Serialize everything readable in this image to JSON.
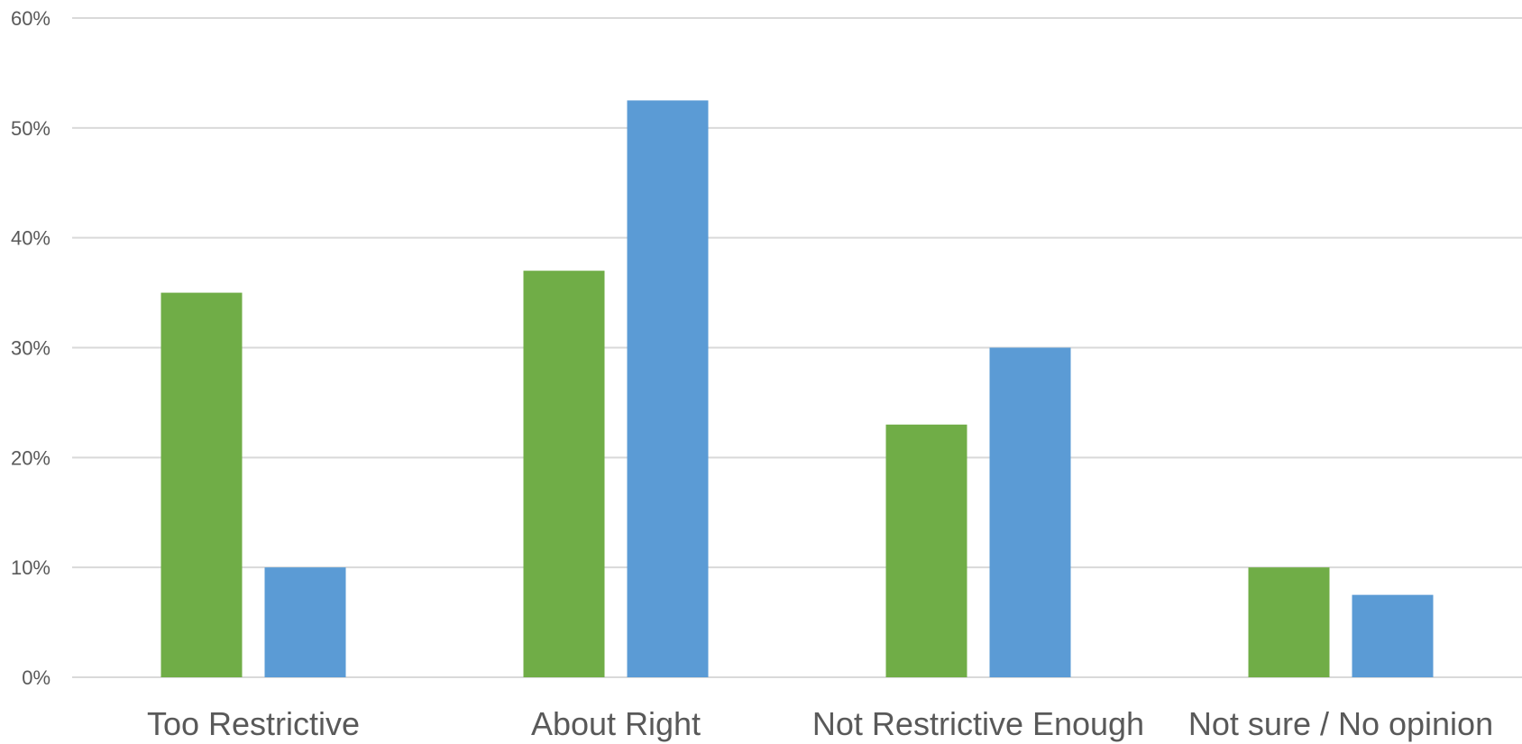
{
  "chart_data": {
    "type": "bar",
    "categories": [
      "Too Restrictive",
      "About Right",
      "Not Restrictive Enough",
      "Not sure / No opinion"
    ],
    "series": [
      {
        "values": [
          35,
          37,
          23,
          10
        ],
        "color": "#70ad47"
      },
      {
        "values": [
          10,
          52.5,
          30,
          7.5
        ],
        "color": "#5b9bd5"
      }
    ],
    "ylim": [
      0,
      60
    ],
    "y_ticks": [
      0,
      10,
      20,
      30,
      40,
      50,
      60
    ],
    "y_tick_labels": [
      "0%",
      "10%",
      "20%",
      "30%",
      "40%",
      "50%",
      "60%"
    ],
    "grid": true,
    "legend": "none",
    "title": "",
    "xlabel": "",
    "ylabel": ""
  }
}
